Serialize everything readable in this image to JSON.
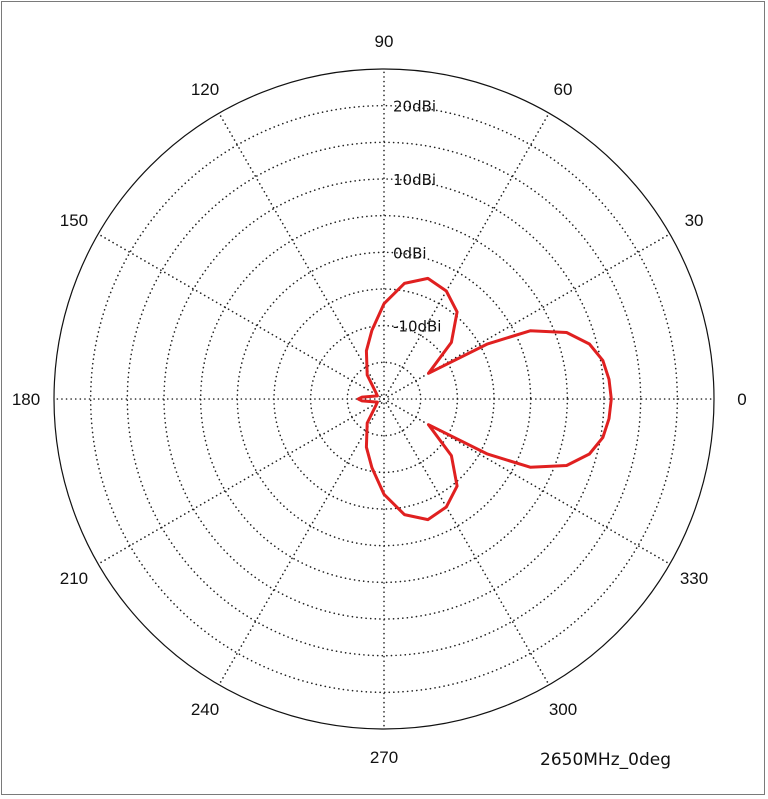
{
  "chart_data": {
    "type": "polar-line",
    "caption": "2650MHz_0deg",
    "angle_ticks": [
      "0",
      "30",
      "60",
      "90",
      "120",
      "150",
      "180",
      "210",
      "240",
      "270",
      "300",
      "330"
    ],
    "ring_labels": [
      "-10dBi",
      "0dBi",
      "10dBi",
      "20dBi"
    ],
    "r_range": [
      -20,
      25
    ],
    "grid": true,
    "series": [
      {
        "color": "#e02020",
        "points": [
          [
            0,
            11.0
          ],
          [
            5,
            10.8
          ],
          [
            10,
            10.3
          ],
          [
            15,
            9.0
          ],
          [
            20,
            6.5
          ],
          [
            25,
            2.0
          ],
          [
            28,
            -4.0
          ],
          [
            30,
            -13.0
          ],
          [
            40,
            -8.0
          ],
          [
            50,
            -4.5
          ],
          [
            60,
            -3.0
          ],
          [
            70,
            -2.5
          ],
          [
            80,
            -4.0
          ],
          [
            90,
            -7.0
          ],
          [
            100,
            -10.5
          ],
          [
            110,
            -13.0
          ],
          [
            125,
            -16.0
          ],
          [
            140,
            -18.5
          ],
          [
            155,
            -19.0
          ],
          [
            175,
            -17.0
          ],
          [
            180,
            -16.5
          ],
          [
            185,
            -17.0
          ],
          [
            205,
            -19.0
          ],
          [
            220,
            -18.5
          ],
          [
            235,
            -16.0
          ],
          [
            250,
            -13.0
          ],
          [
            260,
            -10.5
          ],
          [
            270,
            -7.0
          ],
          [
            280,
            -4.0
          ],
          [
            290,
            -2.5
          ],
          [
            300,
            -3.0
          ],
          [
            310,
            -4.5
          ],
          [
            320,
            -8.0
          ],
          [
            330,
            -13.0
          ],
          [
            332,
            -4.0
          ],
          [
            335,
            2.0
          ],
          [
            340,
            6.5
          ],
          [
            345,
            9.0
          ],
          [
            350,
            10.3
          ],
          [
            355,
            10.8
          ],
          [
            360,
            11.0
          ]
        ]
      }
    ]
  }
}
